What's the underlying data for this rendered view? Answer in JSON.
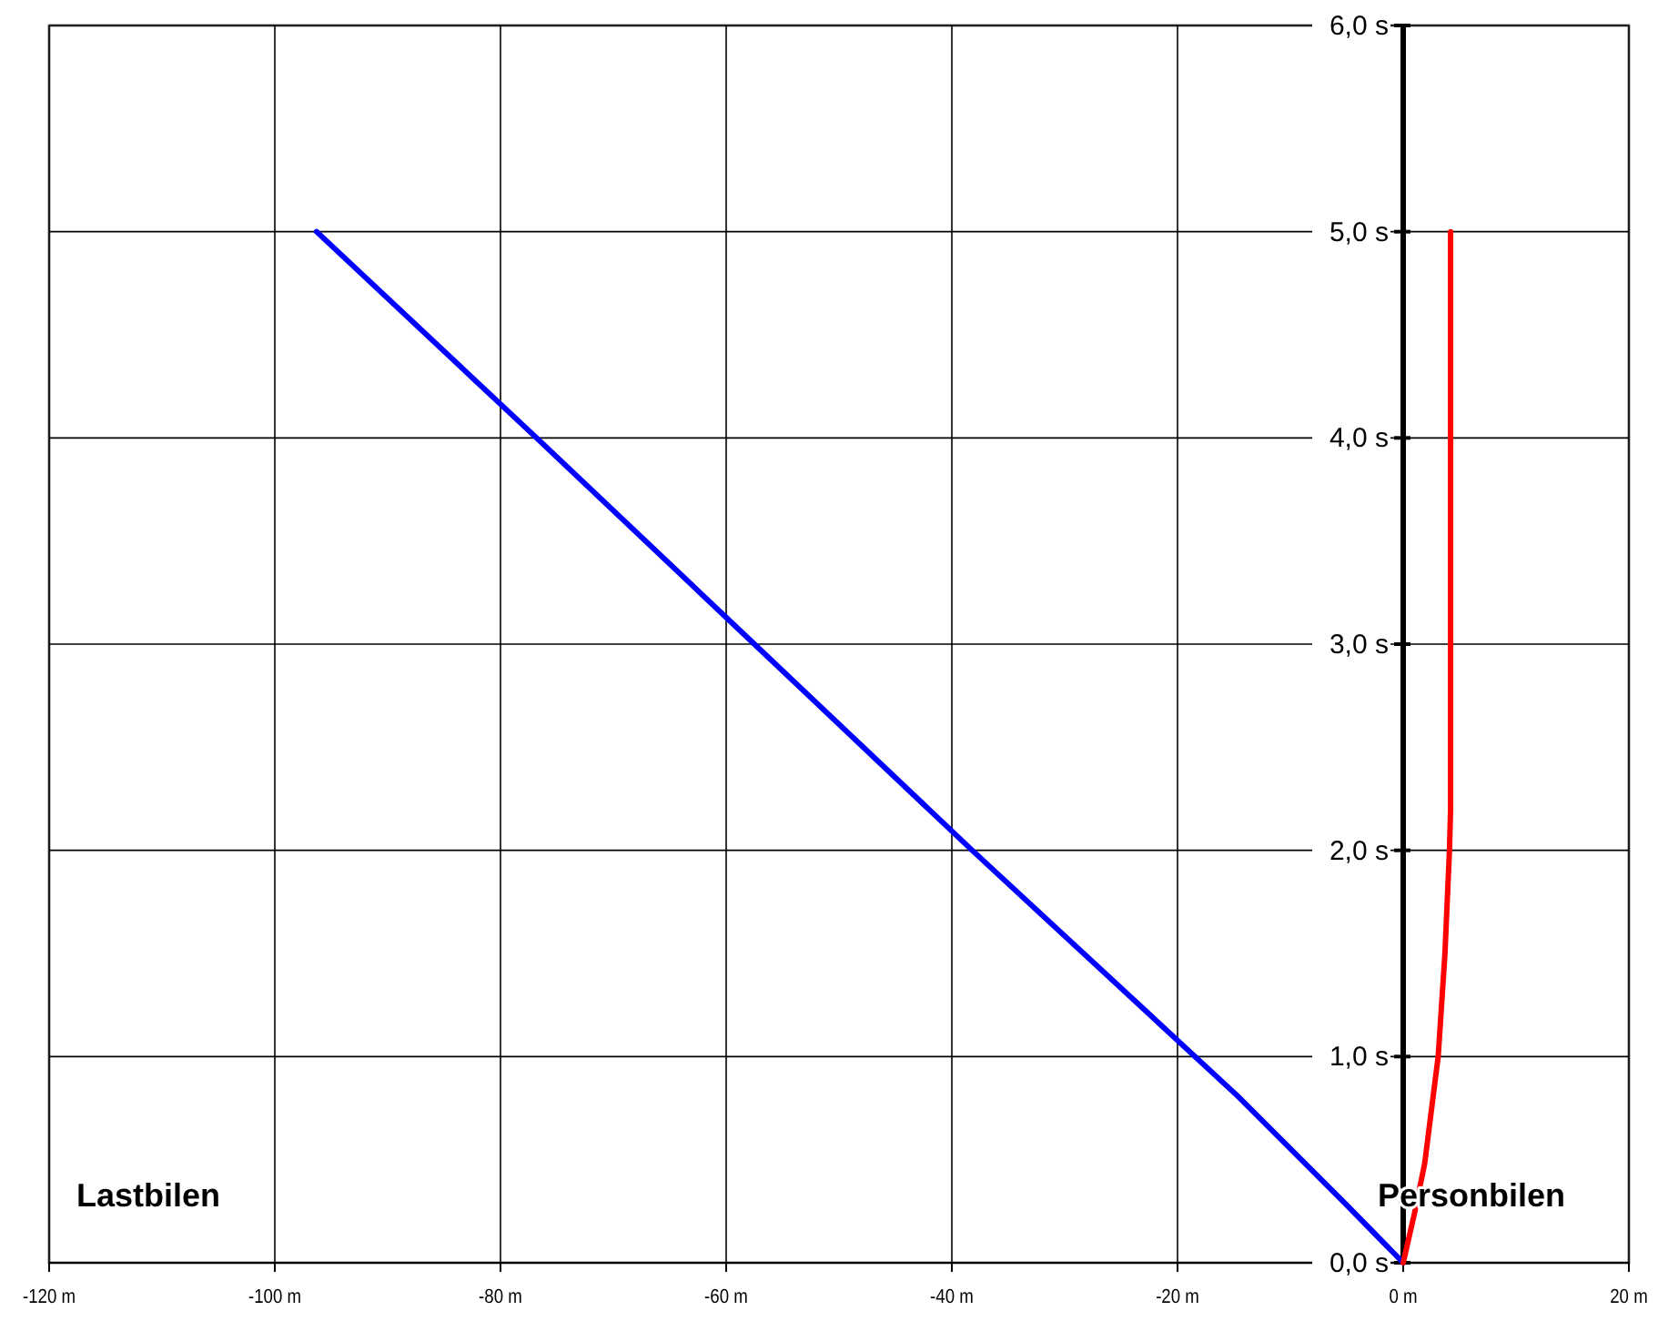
{
  "chart_data": {
    "type": "line",
    "xlim": [
      -120,
      20
    ],
    "ylim": [
      0,
      6
    ],
    "xticks": [
      {
        "value": -120,
        "label": "-120 m"
      },
      {
        "value": -100,
        "label": "-100 m"
      },
      {
        "value": -80,
        "label": "-80 m"
      },
      {
        "value": -60,
        "label": "-60 m"
      },
      {
        "value": -40,
        "label": "-40 m"
      },
      {
        "value": -20,
        "label": "-20 m"
      },
      {
        "value": 0,
        "label": "0 m"
      },
      {
        "value": 20,
        "label": "20 m"
      }
    ],
    "yticks": [
      {
        "value": 0,
        "label": "0,0 s"
      },
      {
        "value": 1,
        "label": "1,0 s"
      },
      {
        "value": 2,
        "label": "2,0 s"
      },
      {
        "value": 3,
        "label": "3,0 s"
      },
      {
        "value": 4,
        "label": "4,0 s"
      },
      {
        "value": 5,
        "label": "5,0 s"
      },
      {
        "value": 6,
        "label": "6,0 s"
      }
    ],
    "grid": true,
    "marker": "none",
    "line_style": "solid",
    "series": [
      {
        "color": "#0000ff",
        "x": [
          0,
          -5,
          -14.7,
          -38.2,
          -57.5,
          -76.8,
          -96.3
        ],
        "values": [
          0,
          0.28,
          0.81,
          2,
          3,
          4,
          5
        ]
      },
      {
        "color": "#ff0000",
        "x": [
          0,
          1,
          1.9,
          3.1,
          3.7,
          4.1,
          4.2,
          4.2
        ],
        "values": [
          0,
          0.24,
          0.48,
          1,
          1.5,
          2,
          2.2,
          5
        ]
      }
    ],
    "annotations": [
      "Lastbilen",
      "Personbilen"
    ]
  }
}
